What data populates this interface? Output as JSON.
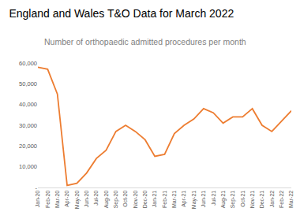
{
  "chart_data": {
    "type": "line",
    "title": "England and Wales T&O Data for March 2022",
    "subtitle": "Number of orthopaedic admitted procedures per month",
    "categories": [
      "Jan-20",
      "Feb-20",
      "Mar-20",
      "Apr-20",
      "May-20",
      "Jun-20",
      "Jul-20",
      "Aug-20",
      "Sep-20",
      "Oct-20",
      "Nov-20",
      "Dec-20",
      "Jan-21",
      "Feb-21",
      "Mar-21",
      "Apr-21",
      "May-21",
      "Jun-21",
      "Jul-21",
      "Aug-21",
      "Sep-21",
      "Oct-21",
      "Nov-21",
      "Dec-21",
      "Jan-22",
      "Feb-22",
      "Mar-22"
    ],
    "values": [
      58000,
      57000,
      45000,
      1000,
      2000,
      7000,
      14000,
      18000,
      27000,
      30000,
      27000,
      23000,
      15000,
      16000,
      26000,
      30000,
      33000,
      38000,
      36000,
      31000,
      34000,
      34000,
      38000,
      30000,
      27000,
      32000,
      37000
    ],
    "color": "#ed7d31",
    "ylim": [
      0,
      60000
    ],
    "yticks": [
      {
        "value": 0,
        "label": "-"
      },
      {
        "value": 10000,
        "label": "10,000"
      },
      {
        "value": 20000,
        "label": "20,000"
      },
      {
        "value": 30000,
        "label": "30,000"
      },
      {
        "value": 40000,
        "label": "40,000"
      },
      {
        "value": 50000,
        "label": "50,000"
      },
      {
        "value": 60000,
        "label": "60,000"
      }
    ],
    "grid": false
  }
}
